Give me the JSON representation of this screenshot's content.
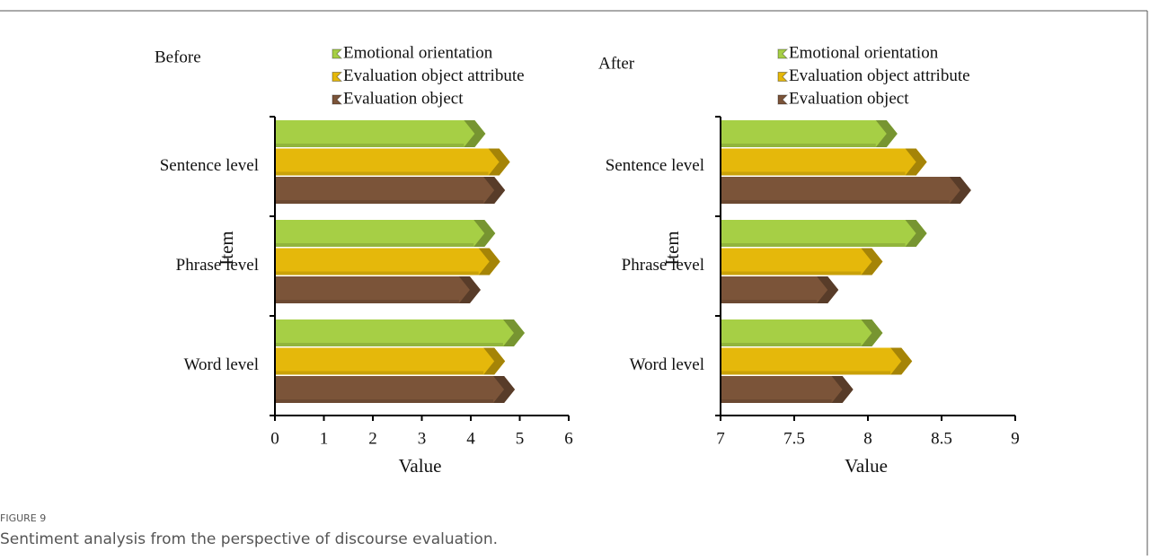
{
  "chart_data": [
    {
      "type": "bar",
      "orientation": "horizontal",
      "title": "Before",
      "xlabel": "Value",
      "ylabel": "Item",
      "categories": [
        "Sentence level",
        "Phrase level",
        "Word level"
      ],
      "series": [
        {
          "name": "Emotional orientation",
          "color": "#a6cf45",
          "values": [
            4.3,
            4.5,
            5.1
          ]
        },
        {
          "name": "Evaluation object attribute",
          "color": "#e5b80b",
          "values": [
            4.8,
            4.6,
            4.7
          ]
        },
        {
          "name": "Evaluation object",
          "color": "#7b5439",
          "values": [
            4.7,
            4.2,
            4.9
          ]
        }
      ],
      "xlim": [
        0,
        6
      ],
      "xticks": [
        0,
        1,
        2,
        3,
        4,
        5,
        6
      ]
    },
    {
      "type": "bar",
      "orientation": "horizontal",
      "title": "After",
      "xlabel": "Value",
      "ylabel": "Item",
      "categories": [
        "Sentence level",
        "Phrase level",
        "Word level"
      ],
      "series": [
        {
          "name": "Emotional orientation",
          "color": "#a6cf45",
          "values": [
            8.2,
            8.4,
            8.1
          ]
        },
        {
          "name": "Evaluation object attribute",
          "color": "#e5b80b",
          "values": [
            8.4,
            8.1,
            8.3
          ]
        },
        {
          "name": "Evaluation object",
          "color": "#7b5439",
          "values": [
            8.7,
            7.8,
            7.9
          ]
        }
      ],
      "xlim": [
        7,
        9
      ],
      "xticks": [
        7,
        7.5,
        8,
        8.5,
        9
      ]
    }
  ],
  "figure": {
    "label": "FIGURE 9",
    "caption": "Sentiment analysis from the perspective of discourse evaluation."
  }
}
